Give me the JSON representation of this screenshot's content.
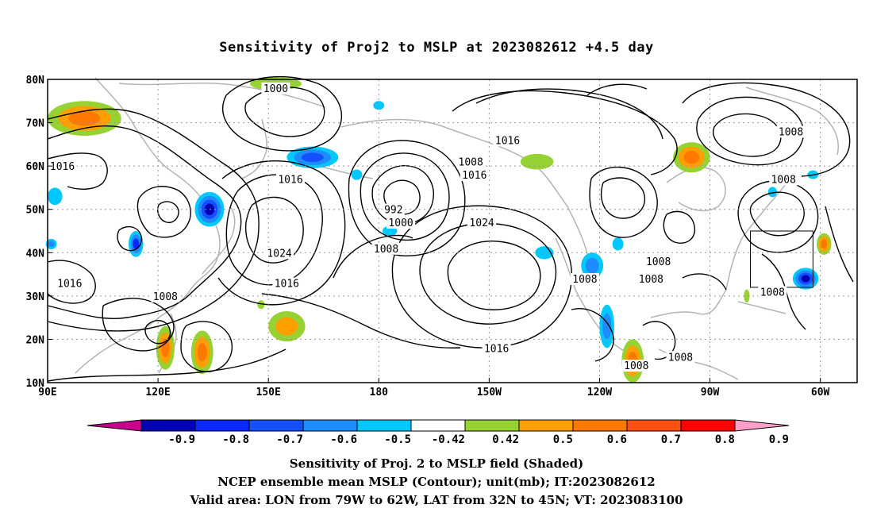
{
  "title": "Sensitivity of Proj2 to MSLP at 2023082612 +4.5 day",
  "map": {
    "lat_ticks": [
      "80N",
      "70N",
      "60N",
      "50N",
      "40N",
      "30N",
      "20N",
      "10N"
    ],
    "lon_ticks": [
      "90E",
      "120E",
      "150E",
      "180",
      "150W",
      "120W",
      "90W",
      "60W"
    ],
    "extent": {
      "lon_min": 90,
      "lon_max": 310,
      "lat_min": 10,
      "lat_max": 80
    },
    "contour_labels": [
      {
        "text": "1000",
        "lon": 152,
        "lat": 78
      },
      {
        "text": "1008",
        "lon": 292,
        "lat": 68
      },
      {
        "text": "1016",
        "lon": 215,
        "lat": 66
      },
      {
        "text": "1016",
        "lon": 94,
        "lat": 60
      },
      {
        "text": "1008",
        "lon": 205,
        "lat": 61
      },
      {
        "text": "1016",
        "lon": 206,
        "lat": 58
      },
      {
        "text": "1016",
        "lon": 156,
        "lat": 57
      },
      {
        "text": "1008",
        "lon": 290,
        "lat": 57
      },
      {
        "text": "992",
        "lon": 184,
        "lat": 50
      },
      {
        "text": "1000",
        "lon": 186,
        "lat": 47
      },
      {
        "text": "1024",
        "lon": 208,
        "lat": 47
      },
      {
        "text": "1008",
        "lon": 182,
        "lat": 41
      },
      {
        "text": "1024",
        "lon": 153,
        "lat": 40
      },
      {
        "text": "1008",
        "lon": 256,
        "lat": 38
      },
      {
        "text": "1008",
        "lon": 236,
        "lat": 34
      },
      {
        "text": "1008",
        "lon": 254,
        "lat": 34
      },
      {
        "text": "1016",
        "lon": 96,
        "lat": 33
      },
      {
        "text": "1016",
        "lon": 155,
        "lat": 33
      },
      {
        "text": "1008",
        "lon": 122,
        "lat": 30
      },
      {
        "text": "1008",
        "lon": 287,
        "lat": 31
      },
      {
        "text": "1016",
        "lon": 212,
        "lat": 18
      },
      {
        "text": "1008",
        "lon": 262,
        "lat": 16
      },
      {
        "text": "1008",
        "lon": 250,
        "lat": 14
      }
    ],
    "valid_box": {
      "lon_west": 281,
      "lon_east": 298,
      "lat_south": 32,
      "lat_north": 45
    },
    "colors": {
      "neg_090": "#c8008c",
      "neg_080": "#0000b4",
      "neg_070": "#0a28ff",
      "neg_060": "#1450ff",
      "neg_050": "#1e8cff",
      "neg_042": "#00c8ff",
      "neutral": "#ffffff",
      "pos_042": "#96d232",
      "pos_050": "#ffa000",
      "pos_060": "#ff7800",
      "pos_070": "#ff5014",
      "pos_080": "#ff0000",
      "pos_090": "#ffa0c8",
      "land": "#b4b4b4",
      "contour": "#000000"
    }
  },
  "colorbar": {
    "labels": [
      "-0.9",
      "-0.8",
      "-0.7",
      "-0.6",
      "-0.5",
      "-0.42",
      "0.42",
      "0.5",
      "0.6",
      "0.7",
      "0.8",
      "0.9"
    ],
    "colors": [
      "#0000b4",
      "#0a28ff",
      "#1450ff",
      "#1e8cff",
      "#00c8ff",
      "#ffffff",
      "#96d232",
      "#ffa000",
      "#ff7800",
      "#ff5014",
      "#ff0000"
    ],
    "low_end_color": "#c8008c",
    "high_end_color": "#ffa0c8"
  },
  "captions": {
    "line1": "Sensitivity of Proj. 2 to MSLP field (Shaded)",
    "line2": "NCEP ensemble mean MSLP (Contour); unit(mb); IT:2023082612",
    "line3": "Valid area: LON from 79W to 62W, LAT from 32N to 45N; VT: 2023083100"
  }
}
